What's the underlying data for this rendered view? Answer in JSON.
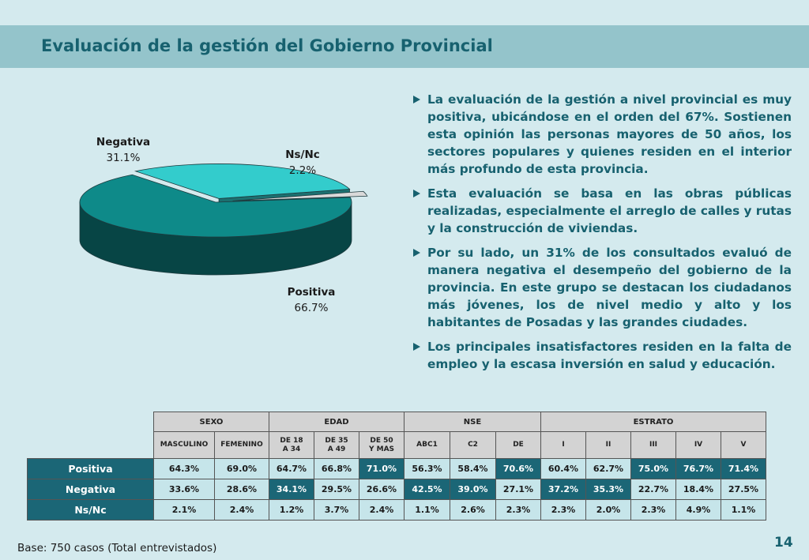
{
  "title": "Evaluación de la gestión del Gobierno Provincial",
  "chart_data": {
    "type": "pie",
    "title": "",
    "slices": [
      {
        "label": "Positiva",
        "value": 66.7,
        "value_label": "66.7%",
        "color": "#0e8a89"
      },
      {
        "label": "Negativa",
        "value": 31.1,
        "value_label": "31.1%",
        "color": "#33cccc"
      },
      {
        "label": "Ns/Nc",
        "value": 2.2,
        "value_label": "2.2%",
        "color": "#d9d9d9"
      }
    ]
  },
  "bullets": [
    "La evaluación de la gestión a nivel provincial es muy positiva, ubicándose en el orden del 67%. Sostienen esta opinión las personas mayores de 50 años, los sectores populares y quienes residen en el interior más profundo de esta provincia.",
    "Esta evaluación se basa en las obras públicas realizadas, especialmente el arreglo de calles y rutas y la construcción de viviendas.",
    "Por su lado, un 31% de los consultados evaluó de manera negativa el desempeño del gobierno de la provincia. En este grupo se destacan los ciudadanos más jóvenes, los de nivel medio y alto y los habitantes de Posadas y las grandes ciudades.",
    "Los principales insatisfactores residen en la falta de empleo y la escasa inversión en salud y educación."
  ],
  "table": {
    "groups": [
      {
        "label": "SEXO",
        "span": 2
      },
      {
        "label": "EDAD",
        "span": 3
      },
      {
        "label": "NSE",
        "span": 3
      },
      {
        "label": "ESTRATO",
        "span": 5
      }
    ],
    "columns": [
      {
        "lines": [
          "MASCULINO"
        ]
      },
      {
        "lines": [
          "FEMENINO"
        ]
      },
      {
        "lines": [
          "DE 18",
          "A 34"
        ]
      },
      {
        "lines": [
          "DE 35",
          "A 49"
        ]
      },
      {
        "lines": [
          "DE 50",
          "Y MAS"
        ]
      },
      {
        "lines": [
          "ABC1"
        ]
      },
      {
        "lines": [
          "C2"
        ]
      },
      {
        "lines": [
          "DE"
        ]
      },
      {
        "lines": [
          "I"
        ]
      },
      {
        "lines": [
          "II"
        ]
      },
      {
        "lines": [
          "III"
        ]
      },
      {
        "lines": [
          "IV"
        ]
      },
      {
        "lines": [
          "V"
        ]
      }
    ],
    "rows": [
      {
        "label": "Positiva",
        "cells": [
          "64.3%",
          "69.0%",
          "64.7%",
          "66.8%",
          "71.0%",
          "56.3%",
          "58.4%",
          "70.6%",
          "60.4%",
          "62.7%",
          "75.0%",
          "76.7%",
          "71.4%"
        ],
        "highlight": [
          false,
          false,
          false,
          false,
          true,
          false,
          false,
          true,
          false,
          false,
          true,
          true,
          true
        ]
      },
      {
        "label": "Negativa",
        "cells": [
          "33.6%",
          "28.6%",
          "34.1%",
          "29.5%",
          "26.6%",
          "42.5%",
          "39.0%",
          "27.1%",
          "37.2%",
          "35.3%",
          "22.7%",
          "18.4%",
          "27.5%"
        ],
        "highlight": [
          false,
          false,
          true,
          false,
          false,
          true,
          true,
          false,
          true,
          true,
          false,
          false,
          false
        ]
      },
      {
        "label": "Ns/Nc",
        "cells": [
          "2.1%",
          "2.4%",
          "1.2%",
          "3.7%",
          "2.4%",
          "1.1%",
          "2.6%",
          "2.3%",
          "2.3%",
          "2.0%",
          "2.3%",
          "4.9%",
          "1.1%"
        ],
        "highlight": [
          false,
          false,
          false,
          false,
          false,
          false,
          false,
          false,
          false,
          false,
          false,
          false,
          false
        ]
      }
    ],
    "highlight_color": "#1b6676"
  },
  "footer": {
    "base": "Base: 750 casos (Total entrevistados)",
    "page_number": "14"
  }
}
